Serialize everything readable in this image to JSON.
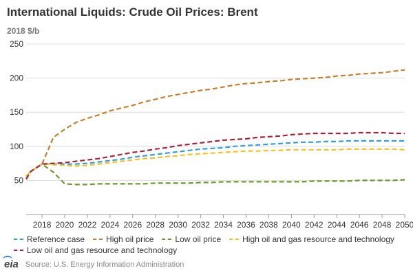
{
  "title": "International Liquids: Crude Oil Prices: Brent",
  "unit_label": "2018 $/b",
  "logo_text": "eia",
  "source": "Source: U.S. Energy Information Administration",
  "chart_data": {
    "type": "line",
    "ylim": [
      0,
      250
    ],
    "xlim": [
      2016.6,
      2050
    ],
    "yticks": [
      50,
      100,
      150,
      200,
      250
    ],
    "xticks": [
      2018,
      2020,
      2022,
      2024,
      2026,
      2028,
      2030,
      2032,
      2034,
      2036,
      2038,
      2040,
      2042,
      2044,
      2046,
      2048,
      2050
    ],
    "grid": true,
    "legend_position": "bottom",
    "series": [
      {
        "name": "Reference case",
        "color": "#2e9fdc",
        "x": [
          2016.6,
          2017,
          2018,
          2019,
          2020,
          2021,
          2022,
          2023,
          2024,
          2025,
          2026,
          2027,
          2028,
          2029,
          2030,
          2031,
          2032,
          2033,
          2034,
          2035,
          2036,
          2037,
          2038,
          2039,
          2040,
          2041,
          2042,
          2043,
          2044,
          2045,
          2046,
          2047,
          2048,
          2049,
          2050
        ],
        "values": [
          56,
          63,
          74,
          74,
          74,
          74,
          75,
          77,
          79,
          81,
          84,
          86,
          88,
          90,
          92,
          94,
          96,
          97,
          98,
          100,
          101,
          102,
          103,
          104,
          105,
          106,
          106,
          107,
          107,
          108,
          108,
          108,
          108,
          108,
          108
        ]
      },
      {
        "name": "High oil price",
        "color": "#c87f2c",
        "x": [
          2016.6,
          2017,
          2018,
          2019,
          2020,
          2021,
          2022,
          2023,
          2024,
          2025,
          2026,
          2027,
          2028,
          2029,
          2030,
          2031,
          2032,
          2033,
          2034,
          2035,
          2036,
          2037,
          2038,
          2039,
          2040,
          2041,
          2042,
          2043,
          2044,
          2045,
          2046,
          2047,
          2048,
          2049,
          2050
        ],
        "values": [
          52,
          63,
          74,
          113,
          125,
          135,
          141,
          146,
          152,
          156,
          160,
          165,
          169,
          173,
          176,
          179,
          182,
          184,
          187,
          190,
          192,
          193,
          195,
          196,
          198,
          199,
          200,
          201,
          203,
          204,
          206,
          207,
          208,
          210,
          212
        ]
      },
      {
        "name": "Low oil price",
        "color": "#6a9a2a",
        "x": [
          2016.6,
          2017,
          2018,
          2019,
          2020,
          2021,
          2022,
          2023,
          2024,
          2025,
          2026,
          2027,
          2028,
          2029,
          2030,
          2031,
          2032,
          2033,
          2034,
          2035,
          2036,
          2037,
          2038,
          2039,
          2040,
          2041,
          2042,
          2043,
          2044,
          2045,
          2046,
          2047,
          2048,
          2049,
          2050
        ],
        "values": [
          56,
          63,
          74,
          62,
          45,
          44,
          44,
          45,
          45,
          45,
          45,
          45,
          46,
          46,
          46,
          46,
          47,
          47,
          48,
          48,
          48,
          48,
          48,
          48,
          48,
          48,
          49,
          49,
          49,
          49,
          50,
          50,
          50,
          50,
          51
        ]
      },
      {
        "name": "High oil and gas resource and technology",
        "color": "#f4c21a",
        "x": [
          2016.6,
          2017,
          2018,
          2019,
          2020,
          2021,
          2022,
          2023,
          2024,
          2025,
          2026,
          2027,
          2028,
          2029,
          2030,
          2031,
          2032,
          2033,
          2034,
          2035,
          2036,
          2037,
          2038,
          2039,
          2040,
          2041,
          2042,
          2043,
          2044,
          2045,
          2046,
          2047,
          2048,
          2049,
          2050
        ],
        "values": [
          56,
          63,
          74,
          73,
          72,
          71,
          72,
          74,
          76,
          78,
          80,
          82,
          83,
          85,
          86,
          88,
          89,
          90,
          91,
          92,
          93,
          93,
          94,
          94,
          95,
          95,
          95,
          95,
          95,
          96,
          96,
          96,
          96,
          96,
          95
        ]
      },
      {
        "name": "Low oil and gas resource and technology",
        "color": "#a8233a",
        "x": [
          2016.6,
          2017,
          2018,
          2019,
          2020,
          2021,
          2022,
          2023,
          2024,
          2025,
          2026,
          2027,
          2028,
          2029,
          2030,
          2031,
          2032,
          2033,
          2034,
          2035,
          2036,
          2037,
          2038,
          2039,
          2040,
          2041,
          2042,
          2043,
          2044,
          2045,
          2046,
          2047,
          2048,
          2049,
          2050
        ],
        "values": [
          52,
          63,
          74,
          75,
          76,
          78,
          80,
          82,
          85,
          88,
          91,
          93,
          96,
          98,
          101,
          103,
          105,
          107,
          109,
          110,
          111,
          113,
          114,
          115,
          117,
          118,
          119,
          119,
          119,
          119,
          120,
          120,
          120,
          119,
          119
        ]
      }
    ]
  }
}
